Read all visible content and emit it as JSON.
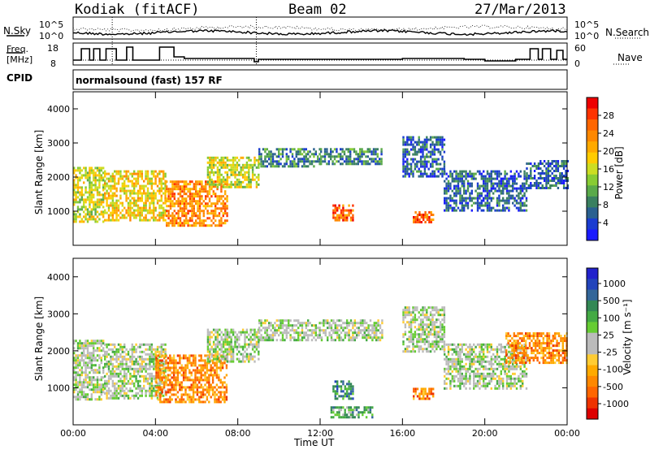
{
  "header": {
    "station": "Kodiak (fitACF)",
    "beam": "Beam 02",
    "date": "27/Mar/2013"
  },
  "panels": {
    "noise": {
      "left_label": "N.Sky",
      "right_label": "N.Search",
      "left_ticks": [
        "10^5",
        "10^0"
      ],
      "right_ticks": [
        "10^5",
        "10^0"
      ]
    },
    "freq": {
      "left_label_1": "Freq.",
      "left_label_2": "[MHz]",
      "right_label": "Nave",
      "left_ticks": [
        "18",
        "8"
      ],
      "right_ticks": [
        "60",
        "0"
      ]
    },
    "cpid": {
      "label": "CPID",
      "value": "normalsound (fast) 157 RF"
    }
  },
  "chart_data": [
    {
      "type": "heatmap",
      "title": "Power",
      "ylabel": "Slant Range [km]",
      "xlabel": "Time UT",
      "x_ticks": [
        "00:00",
        "04:00",
        "08:00",
        "12:00",
        "16:00",
        "20:00",
        "00:00"
      ],
      "y_ticks": [
        1000,
        2000,
        3000,
        4000
      ],
      "ylim": [
        0,
        4500
      ],
      "colorbar": {
        "label": "Power [dB]",
        "ticks": [
          "4",
          "8",
          "12",
          "16",
          "20",
          "24",
          "28"
        ],
        "colors": [
          "#1a1aff",
          "#1a3cd0",
          "#2a6090",
          "#3a8060",
          "#5aaa4a",
          "#88cc33",
          "#ccdd22",
          "#ffcc00",
          "#ffaa00",
          "#ff8800",
          "#ff6600",
          "#ff3300",
          "#ee0000"
        ]
      },
      "echo_regions": [
        {
          "t0": 0.0,
          "t1": 1.5,
          "r0": 700,
          "r1": 2300,
          "level": 6
        },
        {
          "t0": 1.5,
          "t1": 4.5,
          "r0": 700,
          "r1": 2200,
          "level": 7
        },
        {
          "t0": 4.5,
          "t1": 7.5,
          "r0": 600,
          "r1": 1900,
          "level": 9
        },
        {
          "t0": 6.5,
          "t1": 9.0,
          "r0": 1700,
          "r1": 2600,
          "level": 6
        },
        {
          "t0": 9.0,
          "t1": 12.0,
          "r0": 2300,
          "r1": 2850,
          "level": 3
        },
        {
          "t0": 12.0,
          "t1": 15.0,
          "r0": 2350,
          "r1": 2850,
          "level": 3
        },
        {
          "t0": 12.6,
          "t1": 13.6,
          "r0": 700,
          "r1": 1200,
          "level": 10
        },
        {
          "t0": 16.5,
          "t1": 17.5,
          "r0": 700,
          "r1": 1000,
          "level": 10
        },
        {
          "t0": 16.0,
          "t1": 18.0,
          "r0": 2000,
          "r1": 3200,
          "level": 2
        },
        {
          "t0": 18.0,
          "t1": 22.0,
          "r0": 1000,
          "r1": 2200,
          "level": 2
        },
        {
          "t0": 22.0,
          "t1": 24.0,
          "r0": 1700,
          "r1": 2500,
          "level": 2
        }
      ]
    },
    {
      "type": "heatmap",
      "title": "Velocity",
      "ylabel": "Slant Range [km]",
      "xlabel": "Time UT",
      "x_ticks": [
        "00:00",
        "04:00",
        "08:00",
        "12:00",
        "16:00",
        "20:00",
        "00:00"
      ],
      "y_ticks": [
        1000,
        2000,
        3000,
        4000
      ],
      "ylim": [
        0,
        4500
      ],
      "colorbar": {
        "label": "Velocity [m s⁻¹]",
        "ticks": [
          "1000",
          "500",
          "100",
          "25",
          "-25",
          "-100",
          "-500",
          "-1000"
        ],
        "colors": [
          "#2222cc",
          "#2244bb",
          "#336699",
          "#338855",
          "#44aa44",
          "#66cc33",
          "#bbbbbb",
          "#bbbbbb",
          "#ffcc33",
          "#ffaa00",
          "#ff8800",
          "#ff6600",
          "#ee3300",
          "#dd0000"
        ]
      },
      "echo_regions": [
        {
          "t0": 0.0,
          "t1": 1.5,
          "r0": 700,
          "r1": 2300,
          "level": 6
        },
        {
          "t0": 1.5,
          "t1": 4.5,
          "r0": 700,
          "r1": 2200,
          "level": 6
        },
        {
          "t0": 4.0,
          "t1": 7.5,
          "r0": 600,
          "r1": 1900,
          "level": 10
        },
        {
          "t0": 6.5,
          "t1": 9.0,
          "r0": 1700,
          "r1": 2600,
          "level": 6
        },
        {
          "t0": 9.0,
          "t1": 15.0,
          "r0": 2300,
          "r1": 2850,
          "level": 6
        },
        {
          "t0": 12.6,
          "t1": 13.6,
          "r0": 700,
          "r1": 1200,
          "level": 3
        },
        {
          "t0": 12.5,
          "t1": 14.5,
          "r0": 200,
          "r1": 500,
          "level": 4
        },
        {
          "t0": 16.5,
          "t1": 17.5,
          "r0": 700,
          "r1": 1000,
          "level": 10
        },
        {
          "t0": 16.0,
          "t1": 18.0,
          "r0": 2000,
          "r1": 3200,
          "level": 6
        },
        {
          "t0": 18.0,
          "t1": 22.0,
          "r0": 1000,
          "r1": 2200,
          "level": 6
        },
        {
          "t0": 21.0,
          "t1": 24.0,
          "r0": 1700,
          "r1": 2500,
          "level": 10
        }
      ]
    }
  ]
}
